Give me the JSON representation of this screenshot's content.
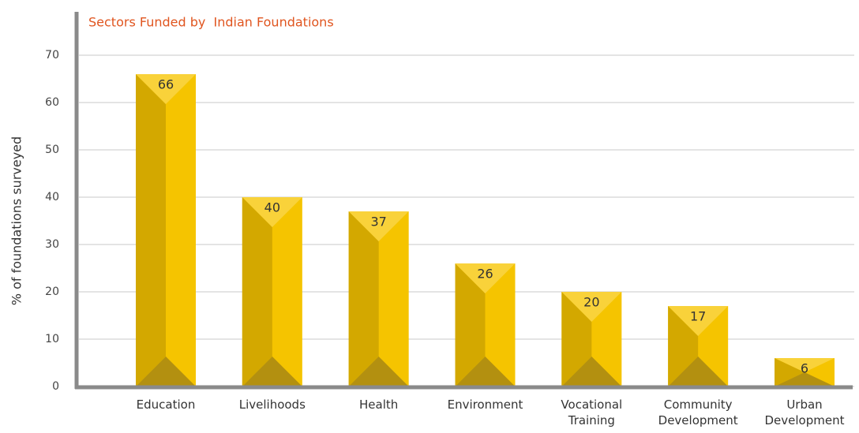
{
  "chart_data": {
    "type": "bar",
    "title": "Sectors Funded by  Indian Foundations",
    "y_label": "% of foundations surveyed",
    "categories": [
      "Education",
      "Livelihoods",
      "Health",
      "Environment",
      "Vocational Training",
      "Community Development",
      "Urban Development"
    ],
    "values": [
      66,
      40,
      37,
      26,
      20,
      17,
      6
    ],
    "color": "#f5c400",
    "ylim": [
      0,
      70
    ],
    "yticks": [
      0,
      10,
      20,
      30,
      40,
      50,
      60,
      70
    ],
    "grid": true
  }
}
